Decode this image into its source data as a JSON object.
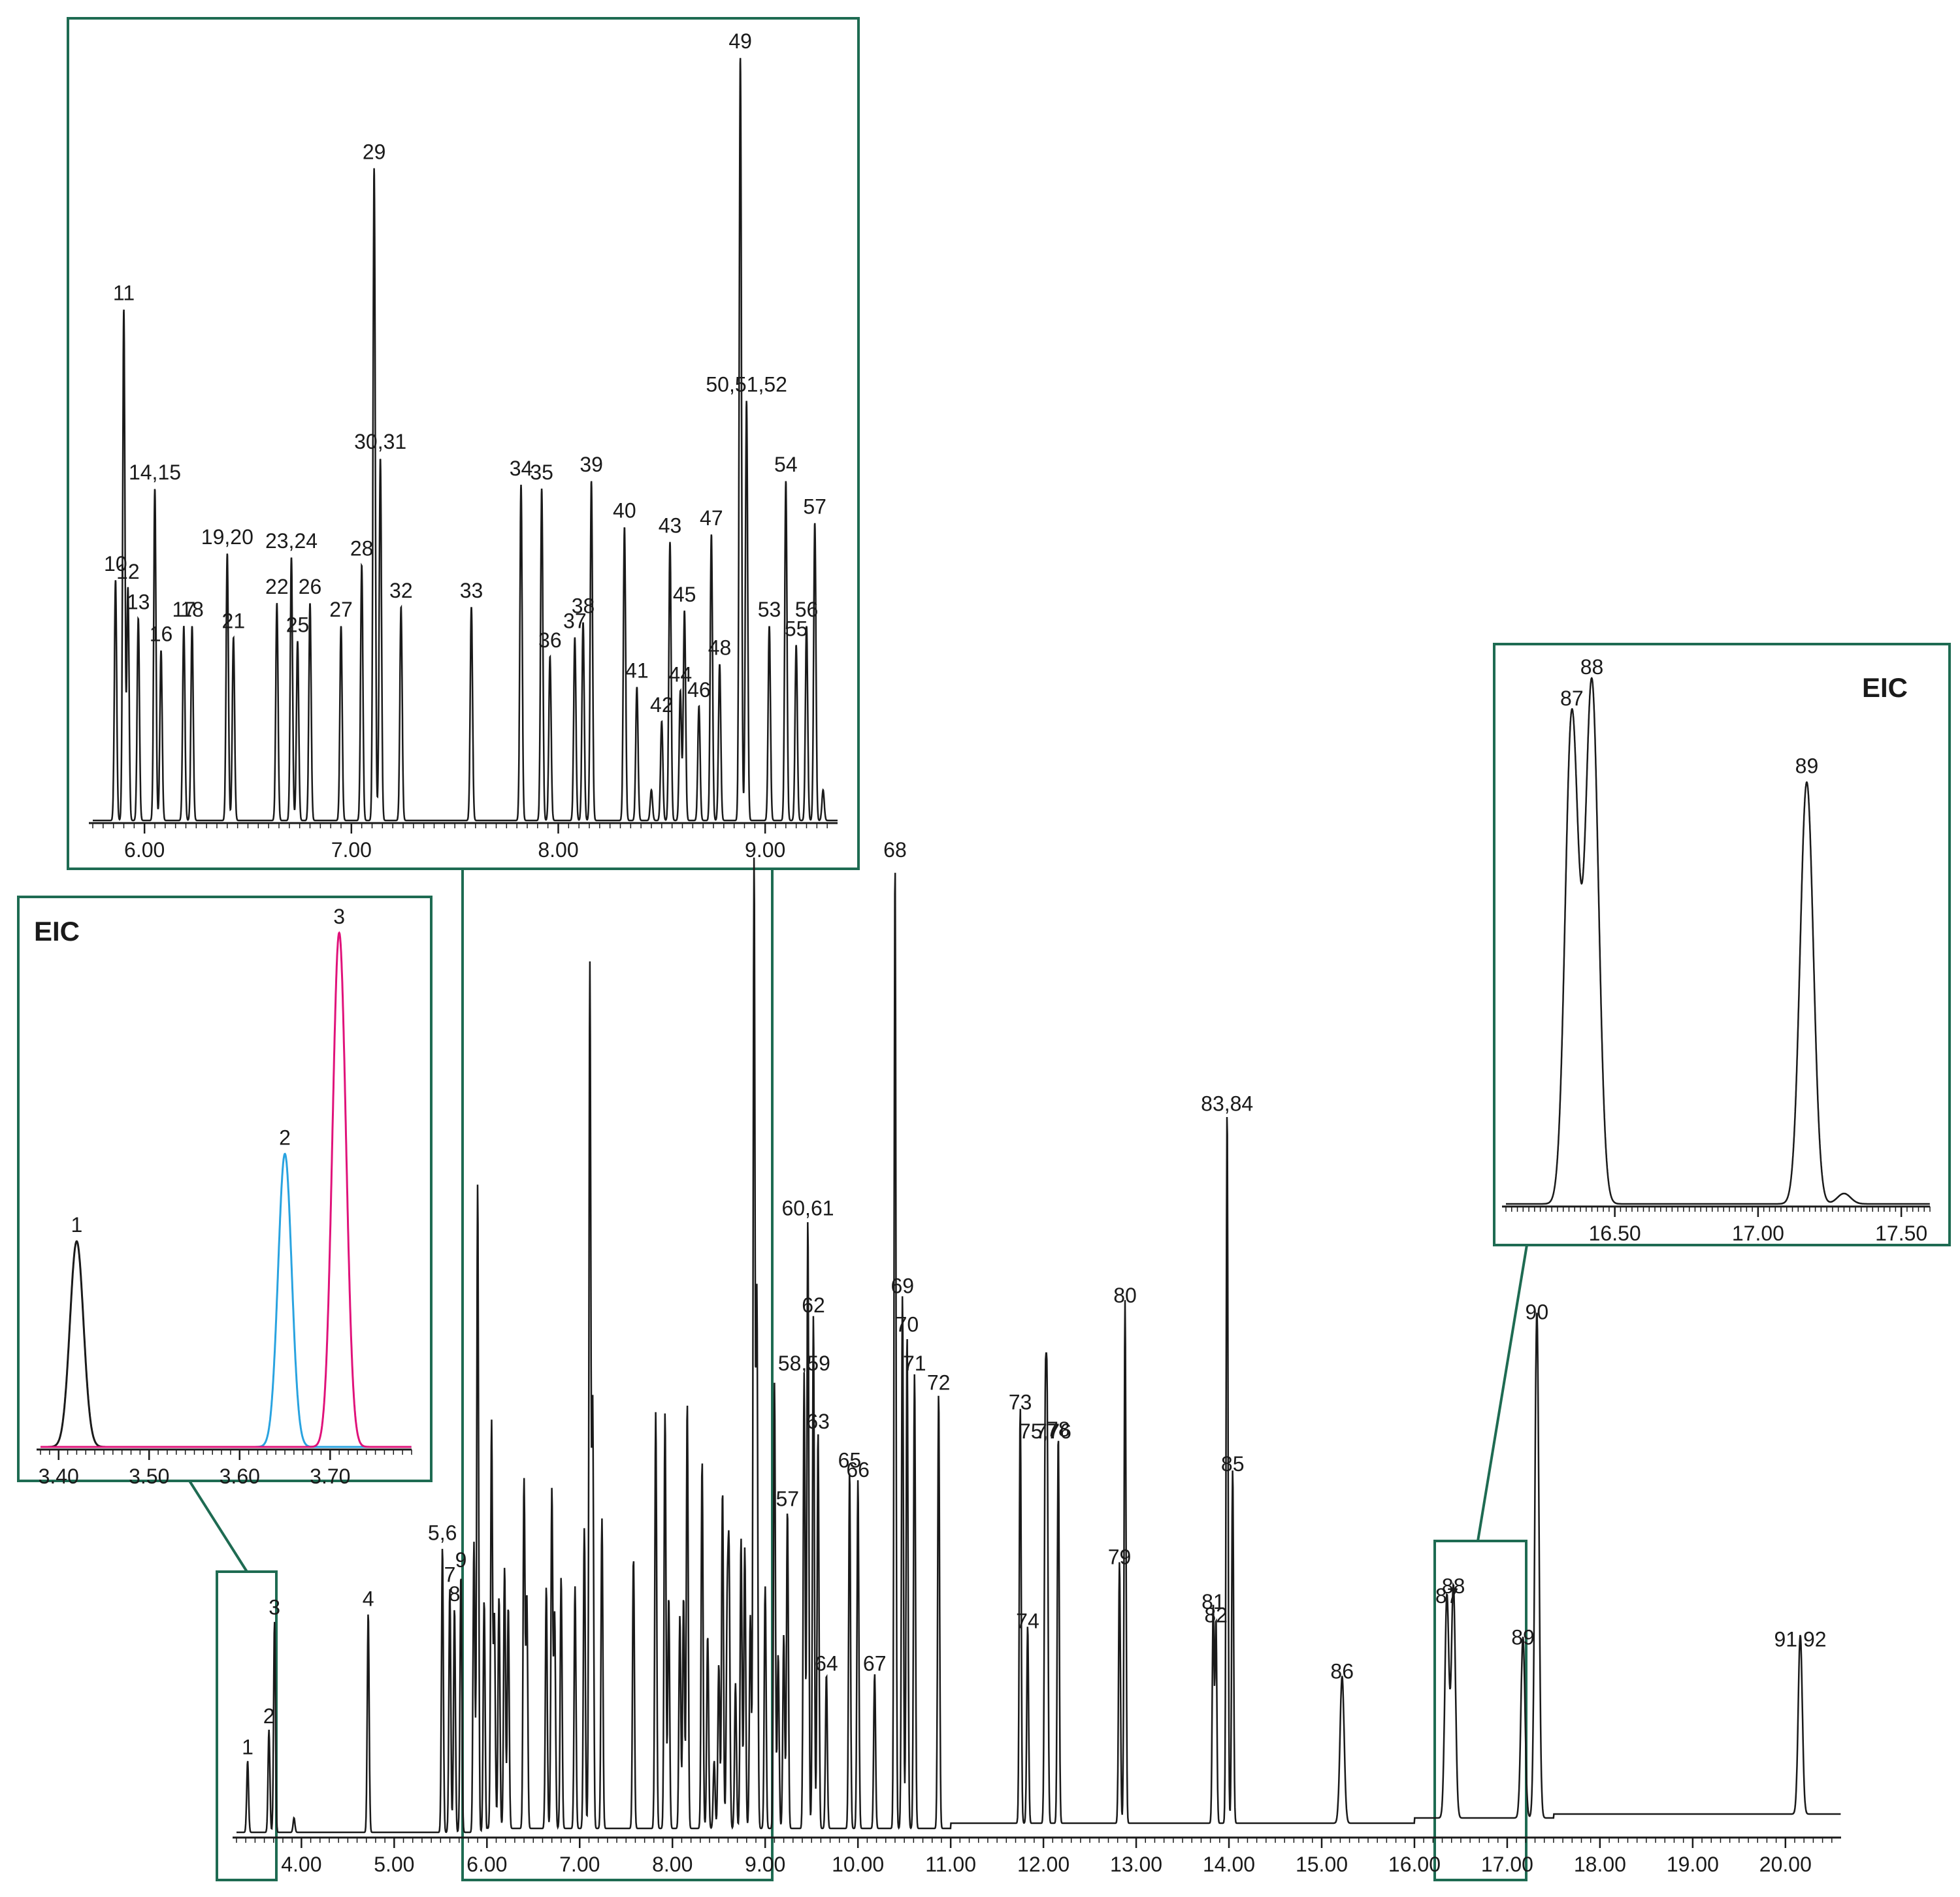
{
  "colors": {
    "trace": "#1a1a1a",
    "frame": "#1e6b52",
    "eic_peak_2": "#29a3e0",
    "eic_peak_3": "#e0127a"
  },
  "chart_data": [
    {
      "id": "main",
      "type": "line",
      "title": "",
      "xlabel": "",
      "ylabel": "",
      "xlim": [
        3.3,
        20.6
      ],
      "ylim": [
        0,
        100
      ],
      "ticks": [
        "4.00",
        "5.00",
        "6.00",
        "7.00",
        "8.00",
        "9.00",
        "10.00",
        "11.00",
        "12.00",
        "13.00",
        "14.00",
        "15.00",
        "16.00",
        "17.00",
        "18.00",
        "19.00",
        "20.00"
      ],
      "peaks": [
        {
          "rt": 3.42,
          "h": 7.4,
          "label": "1"
        },
        {
          "rt": 3.65,
          "h": 10.6,
          "label": "2"
        },
        {
          "rt": 3.71,
          "h": 21.8,
          "label": "3"
        },
        {
          "rt": 3.92,
          "h": 1.5
        },
        {
          "rt": 4.72,
          "h": 22.7,
          "label": "4"
        },
        {
          "rt": 5.52,
          "h": 29.5,
          "label": "5,6"
        },
        {
          "rt": 5.6,
          "h": 25.2,
          "label": "7"
        },
        {
          "rt": 5.65,
          "h": 23.2,
          "label": "8"
        },
        {
          "rt": 5.72,
          "h": 26.7,
          "label": "9"
        },
        {
          "rt": 5.86,
          "h": 30
        },
        {
          "rt": 5.9,
          "h": 67
        },
        {
          "rt": 5.97,
          "h": 24
        },
        {
          "rt": 6.05,
          "h": 42
        },
        {
          "rt": 6.08,
          "h": 22
        },
        {
          "rt": 6.13,
          "h": 24
        },
        {
          "rt": 6.19,
          "h": 27
        },
        {
          "rt": 6.23,
          "h": 23
        },
        {
          "rt": 6.4,
          "h": 36
        },
        {
          "rt": 6.43,
          "h": 24
        },
        {
          "rt": 6.64,
          "h": 25
        },
        {
          "rt": 6.7,
          "h": 35
        },
        {
          "rt": 6.73,
          "h": 22
        },
        {
          "rt": 6.8,
          "h": 26
        },
        {
          "rt": 6.95,
          "h": 25
        },
        {
          "rt": 7.05,
          "h": 31
        },
        {
          "rt": 7.11,
          "h": 89
        },
        {
          "rt": 7.14,
          "h": 44
        },
        {
          "rt": 7.24,
          "h": 32
        },
        {
          "rt": 7.58,
          "h": 28
        },
        {
          "rt": 7.82,
          "h": 43
        },
        {
          "rt": 7.92,
          "h": 43
        },
        {
          "rt": 7.96,
          "h": 24
        },
        {
          "rt": 8.08,
          "h": 22
        },
        {
          "rt": 8.12,
          "h": 24
        },
        {
          "rt": 8.16,
          "h": 44
        },
        {
          "rt": 8.32,
          "h": 38
        },
        {
          "rt": 8.38,
          "h": 20
        },
        {
          "rt": 8.45,
          "h": 7
        },
        {
          "rt": 8.5,
          "h": 17
        },
        {
          "rt": 8.54,
          "h": 35
        },
        {
          "rt": 8.59,
          "h": 21
        },
        {
          "rt": 8.61,
          "h": 27
        },
        {
          "rt": 8.68,
          "h": 15
        },
        {
          "rt": 8.74,
          "h": 30
        },
        {
          "rt": 8.78,
          "h": 29
        },
        {
          "rt": 8.84,
          "h": 22
        },
        {
          "rt": 8.88,
          "h": 100
        },
        {
          "rt": 8.91,
          "h": 55
        },
        {
          "rt": 9.0,
          "h": 25
        },
        {
          "rt": 9.1,
          "h": 46
        },
        {
          "rt": 9.14,
          "h": 18
        },
        {
          "rt": 9.2,
          "h": 20
        },
        {
          "rt": 9.24,
          "h": 33,
          "label": "57"
        },
        {
          "rt": 9.42,
          "h": 47,
          "label": "58,59"
        },
        {
          "rt": 9.46,
          "h": 63,
          "label": "60,61"
        },
        {
          "rt": 9.52,
          "h": 53,
          "label": "62"
        },
        {
          "rt": 9.57,
          "h": 41,
          "label": "63"
        },
        {
          "rt": 9.66,
          "h": 16,
          "label": "64"
        },
        {
          "rt": 9.91,
          "h": 37,
          "label": "65"
        },
        {
          "rt": 10.0,
          "h": 36,
          "label": "66"
        },
        {
          "rt": 10.18,
          "h": 16,
          "label": "67"
        },
        {
          "rt": 10.4,
          "h": 100,
          "label": "68"
        },
        {
          "rt": 10.48,
          "h": 55,
          "label": "69"
        },
        {
          "rt": 10.53,
          "h": 51,
          "label": "70"
        },
        {
          "rt": 10.61,
          "h": 47,
          "label": "71"
        },
        {
          "rt": 10.87,
          "h": 45,
          "label": "72"
        },
        {
          "rt": 11.75,
          "h": 43,
          "label": "73"
        },
        {
          "rt": 11.83,
          "h": 20.4,
          "label": "74"
        },
        {
          "rt": 12.02,
          "h": 40,
          "label": "75,76"
        },
        {
          "rt": 12.04,
          "h": 40,
          "label": "77"
        },
        {
          "rt": 12.16,
          "h": 40.2,
          "label": "78"
        },
        {
          "rt": 12.82,
          "h": 27,
          "label": "79"
        },
        {
          "rt": 12.88,
          "h": 54,
          "label": "80"
        },
        {
          "rt": 13.83,
          "h": 22.4,
          "label": "81"
        },
        {
          "rt": 13.86,
          "h": 21,
          "label": "82"
        },
        {
          "rt": 13.98,
          "h": 73.8,
          "label": "83,84"
        },
        {
          "rt": 14.04,
          "h": 36.6,
          "label": "85"
        },
        {
          "rt": 15.22,
          "h": 15.2,
          "label": "86"
        },
        {
          "rt": 16.35,
          "h": 23,
          "label": "87"
        },
        {
          "rt": 16.42,
          "h": 24,
          "label": "88"
        },
        {
          "rt": 17.17,
          "h": 18.7,
          "label": "89"
        },
        {
          "rt": 17.32,
          "h": 52.3,
          "label": "90"
        },
        {
          "rt": 20.16,
          "h": 18.5,
          "label": "91,92"
        }
      ]
    },
    {
      "id": "inset-top",
      "type": "line",
      "title": "",
      "xlabel": "",
      "ylabel": "",
      "xlim": [
        5.75,
        9.35
      ],
      "ylim": [
        0,
        100
      ],
      "ticks": [
        "6.00",
        "7.00",
        "8.00",
        "9.00"
      ],
      "peaks": [
        {
          "rt": 5.86,
          "h": 31.5,
          "label": "10"
        },
        {
          "rt": 5.9,
          "h": 67,
          "label": "11"
        },
        {
          "rt": 5.92,
          "h": 30.5,
          "label": "12"
        },
        {
          "rt": 5.97,
          "h": 26.5,
          "label": "13"
        },
        {
          "rt": 6.05,
          "h": 43.5,
          "label": "14,15"
        },
        {
          "rt": 6.08,
          "h": 22.3,
          "label": "16"
        },
        {
          "rt": 6.19,
          "h": 25.5,
          "label": "17"
        },
        {
          "rt": 6.23,
          "h": 25.5,
          "label": "18"
        },
        {
          "rt": 6.4,
          "h": 35,
          "label": "19,20"
        },
        {
          "rt": 6.43,
          "h": 24,
          "label": "21"
        },
        {
          "rt": 6.64,
          "h": 28.5,
          "label": "22"
        },
        {
          "rt": 6.71,
          "h": 34.5,
          "label": "23,24"
        },
        {
          "rt": 6.74,
          "h": 23.5,
          "label": "25"
        },
        {
          "rt": 6.8,
          "h": 28.5,
          "label": "26"
        },
        {
          "rt": 6.95,
          "h": 25.5,
          "label": "27"
        },
        {
          "rt": 7.05,
          "h": 33.5,
          "label": "28"
        },
        {
          "rt": 7.11,
          "h": 85.5,
          "label": "29"
        },
        {
          "rt": 7.14,
          "h": 47.5,
          "label": "30,31"
        },
        {
          "rt": 7.24,
          "h": 28,
          "label": "32"
        },
        {
          "rt": 7.58,
          "h": 28,
          "label": "33"
        },
        {
          "rt": 7.82,
          "h": 44,
          "label": "34"
        },
        {
          "rt": 7.92,
          "h": 43.5,
          "label": "35"
        },
        {
          "rt": 7.96,
          "h": 21.5,
          "label": "36"
        },
        {
          "rt": 8.08,
          "h": 24,
          "label": "37"
        },
        {
          "rt": 8.12,
          "h": 26,
          "label": "38"
        },
        {
          "rt": 8.16,
          "h": 44.5,
          "label": "39"
        },
        {
          "rt": 8.32,
          "h": 38.5,
          "label": "40"
        },
        {
          "rt": 8.38,
          "h": 17.5,
          "label": "41"
        },
        {
          "rt": 8.45,
          "h": 4
        },
        {
          "rt": 8.5,
          "h": 13,
          "label": "42"
        },
        {
          "rt": 8.54,
          "h": 36.5,
          "label": "43"
        },
        {
          "rt": 8.59,
          "h": 17,
          "label": "44"
        },
        {
          "rt": 8.61,
          "h": 27.5,
          "label": "45"
        },
        {
          "rt": 8.68,
          "h": 15,
          "label": "46"
        },
        {
          "rt": 8.74,
          "h": 37.5,
          "label": "47"
        },
        {
          "rt": 8.78,
          "h": 20.5,
          "label": "48"
        },
        {
          "rt": 8.88,
          "h": 100,
          "label": "49"
        },
        {
          "rt": 8.91,
          "h": 55,
          "label": "50,51,52"
        },
        {
          "rt": 9.02,
          "h": 25.5,
          "label": "53"
        },
        {
          "rt": 9.1,
          "h": 44.5,
          "label": "54"
        },
        {
          "rt": 9.15,
          "h": 23,
          "label": "55"
        },
        {
          "rt": 9.2,
          "h": 25.5,
          "label": "56"
        },
        {
          "rt": 9.24,
          "h": 39,
          "label": "57"
        },
        {
          "rt": 9.28,
          "h": 4
        }
      ]
    },
    {
      "id": "inset-eic-left",
      "type": "line",
      "title": "EIC",
      "xlabel": "",
      "ylabel": "",
      "xlim": [
        3.38,
        3.79
      ],
      "ylim": [
        0,
        100
      ],
      "ticks": [
        "3.40",
        "3.50",
        "3.60",
        "3.70"
      ],
      "series": [
        {
          "label": "1",
          "rt": 3.42,
          "h": 40,
          "color": "#1a1a1a"
        },
        {
          "label": "2",
          "rt": 3.65,
          "h": 57,
          "color": "#29a3e0"
        },
        {
          "label": "3",
          "rt": 3.71,
          "h": 100,
          "color": "#e0127a"
        }
      ]
    },
    {
      "id": "inset-eic-right",
      "type": "line",
      "title": "EIC",
      "xlabel": "",
      "ylabel": "",
      "xlim": [
        16.12,
        17.6
      ],
      "ylim": [
        0,
        100
      ],
      "ticks": [
        "16.50",
        "17.00",
        "17.50"
      ],
      "peaks": [
        {
          "rt": 16.35,
          "h": 94,
          "label": "87"
        },
        {
          "rt": 16.42,
          "h": 100,
          "label": "88"
        },
        {
          "rt": 17.17,
          "h": 81,
          "label": "89"
        },
        {
          "rt": 17.3,
          "h": 2
        }
      ]
    }
  ]
}
